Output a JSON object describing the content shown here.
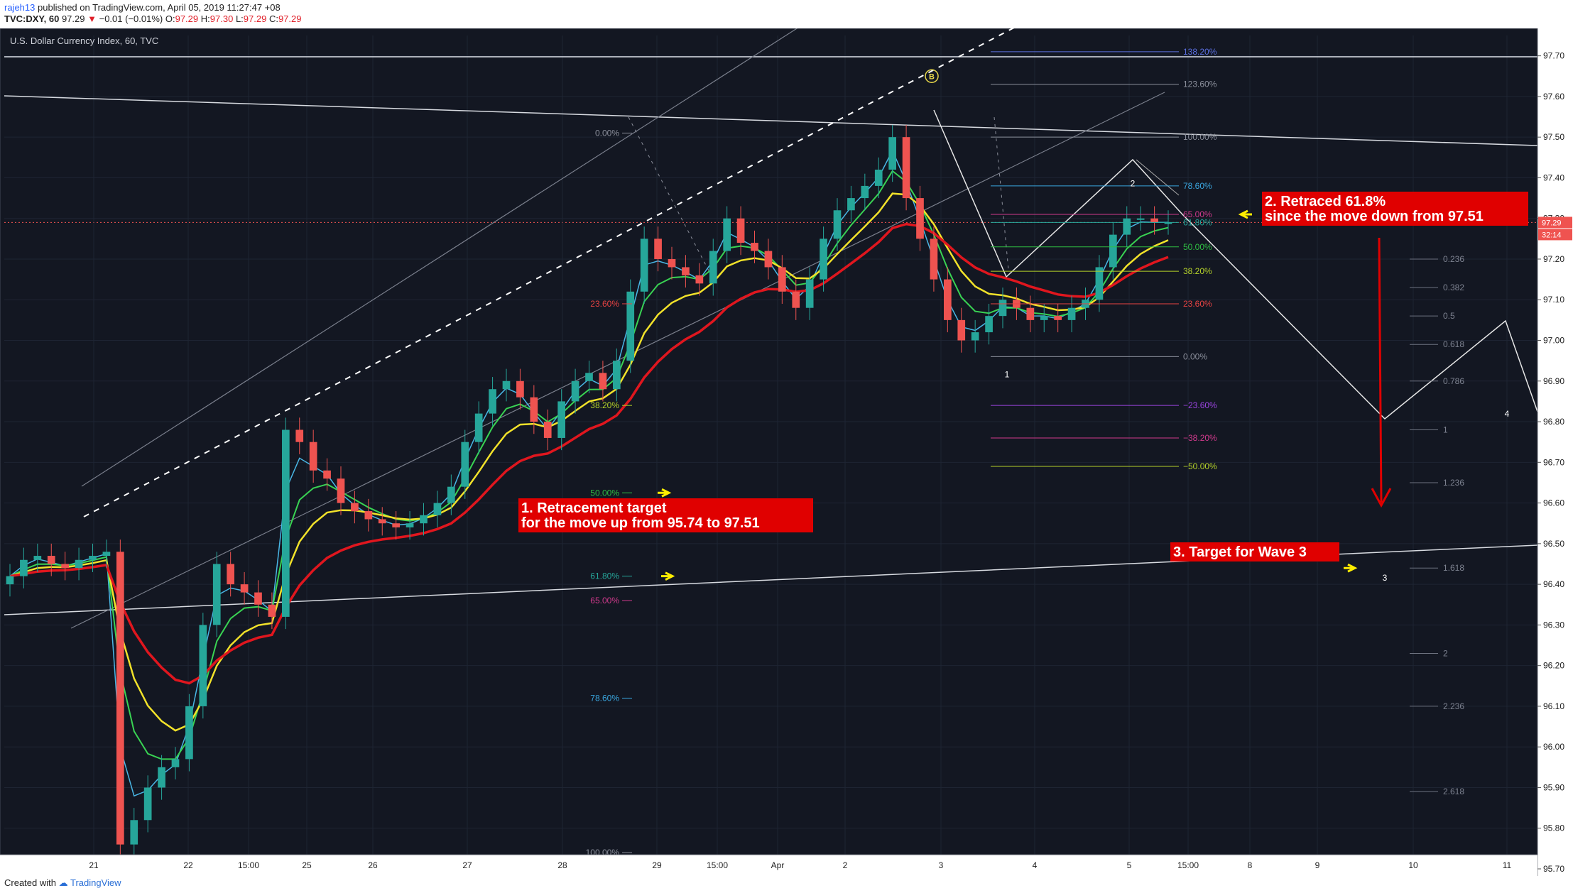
{
  "header": {
    "username": "rajeh13",
    "published": "published on TradingView.com, April 05, 2019 11:27:47 +08",
    "symbol": "TVC:DXY, 60",
    "price": "97.29",
    "change_arrow": "▼",
    "change": "−0.01 (−0.01%)",
    "ohlc": {
      "o": "O:",
      "o_val": "97.29",
      "h": "H:",
      "h_val": "97.30",
      "l": "L:",
      "l_val": "97.29",
      "c": "C:",
      "c_val": "97.29"
    }
  },
  "chart_title": "U.S. Dollar Currency Index, 60, TVC",
  "footer": {
    "created_with": "Created with",
    "brand": "TradingView"
  },
  "colors": {
    "background": "#131722",
    "bull": "#26a69a",
    "bear": "#ef5350",
    "ema_red": "#e0161e",
    "ema_yellow": "#f2e22a",
    "ema_green": "#39d353",
    "ema_blue": "#49b7e6",
    "annotation_bg": "#e00000",
    "arrow_yellow": "#ffee00"
  },
  "chart_data": {
    "type": "candlestick",
    "ylim": [
      95.7,
      97.75
    ],
    "yticks": [
      "97.70",
      "97.60",
      "97.50",
      "97.40",
      "97.30",
      "97.20",
      "97.10",
      "97.00",
      "96.90",
      "96.80",
      "96.70",
      "96.60",
      "96.50",
      "96.40",
      "96.30",
      "96.20",
      "96.10",
      "96.00",
      "95.90",
      "95.80",
      "95.70"
    ],
    "xticks": [
      "21",
      "22",
      "15:00",
      "25",
      "26",
      "27",
      "28",
      "29",
      "15:00",
      "Apr",
      "2",
      "3",
      "4",
      "5",
      "15:00",
      "8",
      "9",
      "10",
      "11"
    ],
    "last_price_label": "97.29",
    "countdown_label": "32:14",
    "series": [
      {
        "name": "price",
        "x": [
          0,
          1,
          2,
          3,
          4,
          5,
          6,
          7,
          8,
          9,
          10,
          11,
          12,
          13,
          14,
          15,
          16,
          17,
          18,
          19,
          20,
          21,
          22,
          23,
          24,
          25,
          26,
          27,
          28,
          29,
          30,
          31,
          32,
          33,
          34,
          35,
          36,
          37,
          38,
          39,
          40,
          41,
          42,
          43,
          44,
          45,
          46,
          47,
          48,
          49,
          50,
          51,
          52,
          53,
          54,
          55,
          56,
          57,
          58,
          59,
          60,
          61,
          62,
          63,
          64,
          65,
          66,
          67,
          68,
          69,
          70,
          71,
          72,
          73,
          74,
          75,
          76,
          77,
          78,
          79,
          80,
          81,
          82,
          83,
          84
        ],
        "values": [
          96.42,
          96.46,
          96.47,
          96.45,
          96.44,
          96.46,
          96.47,
          96.48,
          95.76,
          95.82,
          95.9,
          95.95,
          95.97,
          96.1,
          96.3,
          96.45,
          96.4,
          96.38,
          96.35,
          96.32,
          96.78,
          96.75,
          96.68,
          96.66,
          96.6,
          96.58,
          96.56,
          96.55,
          96.54,
          96.55,
          96.57,
          96.6,
          96.64,
          96.75,
          96.82,
          96.88,
          96.9,
          96.86,
          96.8,
          96.76,
          96.85,
          96.9,
          96.92,
          96.88,
          96.95,
          97.12,
          97.25,
          97.2,
          97.18,
          97.16,
          97.14,
          97.22,
          97.3,
          97.24,
          97.22,
          97.18,
          97.12,
          97.08,
          97.15,
          97.25,
          97.32,
          97.35,
          97.38,
          97.42,
          97.5,
          97.35,
          97.25,
          97.15,
          97.05,
          97.0,
          97.02,
          97.06,
          97.1,
          97.08,
          97.05,
          97.06,
          97.05,
          97.08,
          97.1,
          97.18,
          97.26,
          97.3,
          97.3,
          97.29,
          97.29
        ]
      }
    ],
    "fib_retracement_left": [
      {
        "label": "0.00%",
        "price": 97.51
      },
      {
        "label": "23.60%",
        "price": 97.09
      },
      {
        "label": "38.20%",
        "price": 96.84
      },
      {
        "label": "50.00%",
        "price": 96.625
      },
      {
        "label": "61.80%",
        "price": 96.42
      },
      {
        "label": "65.00%",
        "price": 96.36
      },
      {
        "label": "78.60%",
        "price": 96.12
      },
      {
        "label": "100.00%",
        "price": 95.74
      }
    ],
    "fib_retracement_right": [
      {
        "label": "138.20%",
        "price": 97.71
      },
      {
        "label": "123.60%",
        "price": 97.63
      },
      {
        "label": "100.00%",
        "price": 97.5
      },
      {
        "label": "78.60%",
        "price": 97.38
      },
      {
        "label": "65.00%",
        "price": 97.31
      },
      {
        "label": "61.80%",
        "price": 97.29
      },
      {
        "label": "50.00%",
        "price": 97.23
      },
      {
        "label": "38.20%",
        "price": 97.17
      },
      {
        "label": "23.60%",
        "price": 97.09
      },
      {
        "label": "0.00%",
        "price": 96.96
      },
      {
        "label": "−23.60%",
        "price": 96.84
      },
      {
        "label": "−38.20%",
        "price": 96.76
      },
      {
        "label": "−50.00%",
        "price": 96.69
      }
    ],
    "fib_extension": [
      {
        "label": "0.236",
        "price": 97.2
      },
      {
        "label": "0.382",
        "price": 97.13
      },
      {
        "label": "0.5",
        "price": 97.06
      },
      {
        "label": "0.618",
        "price": 96.99
      },
      {
        "label": "0.786",
        "price": 96.9
      },
      {
        "label": "1",
        "price": 96.78
      },
      {
        "label": "1.236",
        "price": 96.65
      },
      {
        "label": "1.618",
        "price": 96.44
      },
      {
        "label": "2",
        "price": 96.23
      },
      {
        "label": "2.236",
        "price": 96.1
      },
      {
        "label": "2.618",
        "price": 95.89
      }
    ],
    "wave_labels": [
      {
        "label": "B",
        "price": 97.65
      },
      {
        "label": "1",
        "price": 96.93
      },
      {
        "label": "2",
        "price": 97.37
      },
      {
        "label": "3",
        "price": 96.43
      },
      {
        "label": "4",
        "price": 96.8
      }
    ],
    "annotations": [
      {
        "line1": "1. Retracement target",
        "line2": "for the move up from 95.74 to 97.51"
      },
      {
        "line1": "2. Retraced 61.8%",
        "line2": "since the move down from 97.51"
      },
      {
        "line1": "3. Target for Wave 3",
        "line2": ""
      }
    ]
  }
}
